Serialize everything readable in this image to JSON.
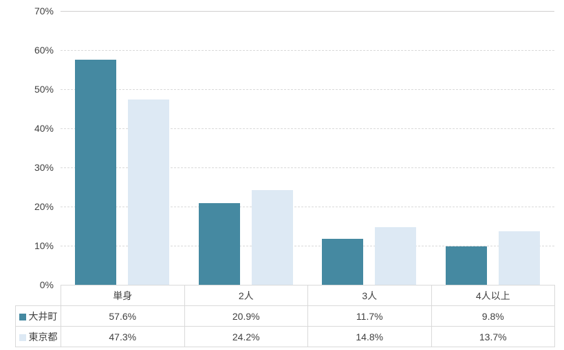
{
  "chart_data": {
    "type": "bar",
    "categories": [
      "単身",
      "2人",
      "3人",
      "4人以上"
    ],
    "series": [
      {
        "name": "大井町",
        "color": "#4589A1",
        "values": [
          57.6,
          20.9,
          11.7,
          9.8
        ]
      },
      {
        "name": "東京都",
        "color": "#DDE9F4",
        "values": [
          47.3,
          24.2,
          14.8,
          13.7
        ]
      }
    ],
    "title": "",
    "xlabel": "",
    "ylabel": "",
    "ylim": [
      0,
      70
    ],
    "ytick_step": 10,
    "ytick_suffix": "%",
    "value_suffix": "%",
    "grid": true,
    "legend_position": "table-left",
    "data_table": true
  },
  "styles": {
    "background": "#ffffff",
    "grid_color": "#d9d9d9",
    "top_line_color": "#d0cece",
    "table_border_color": "#d9d9d9",
    "text_color": "#404040"
  }
}
